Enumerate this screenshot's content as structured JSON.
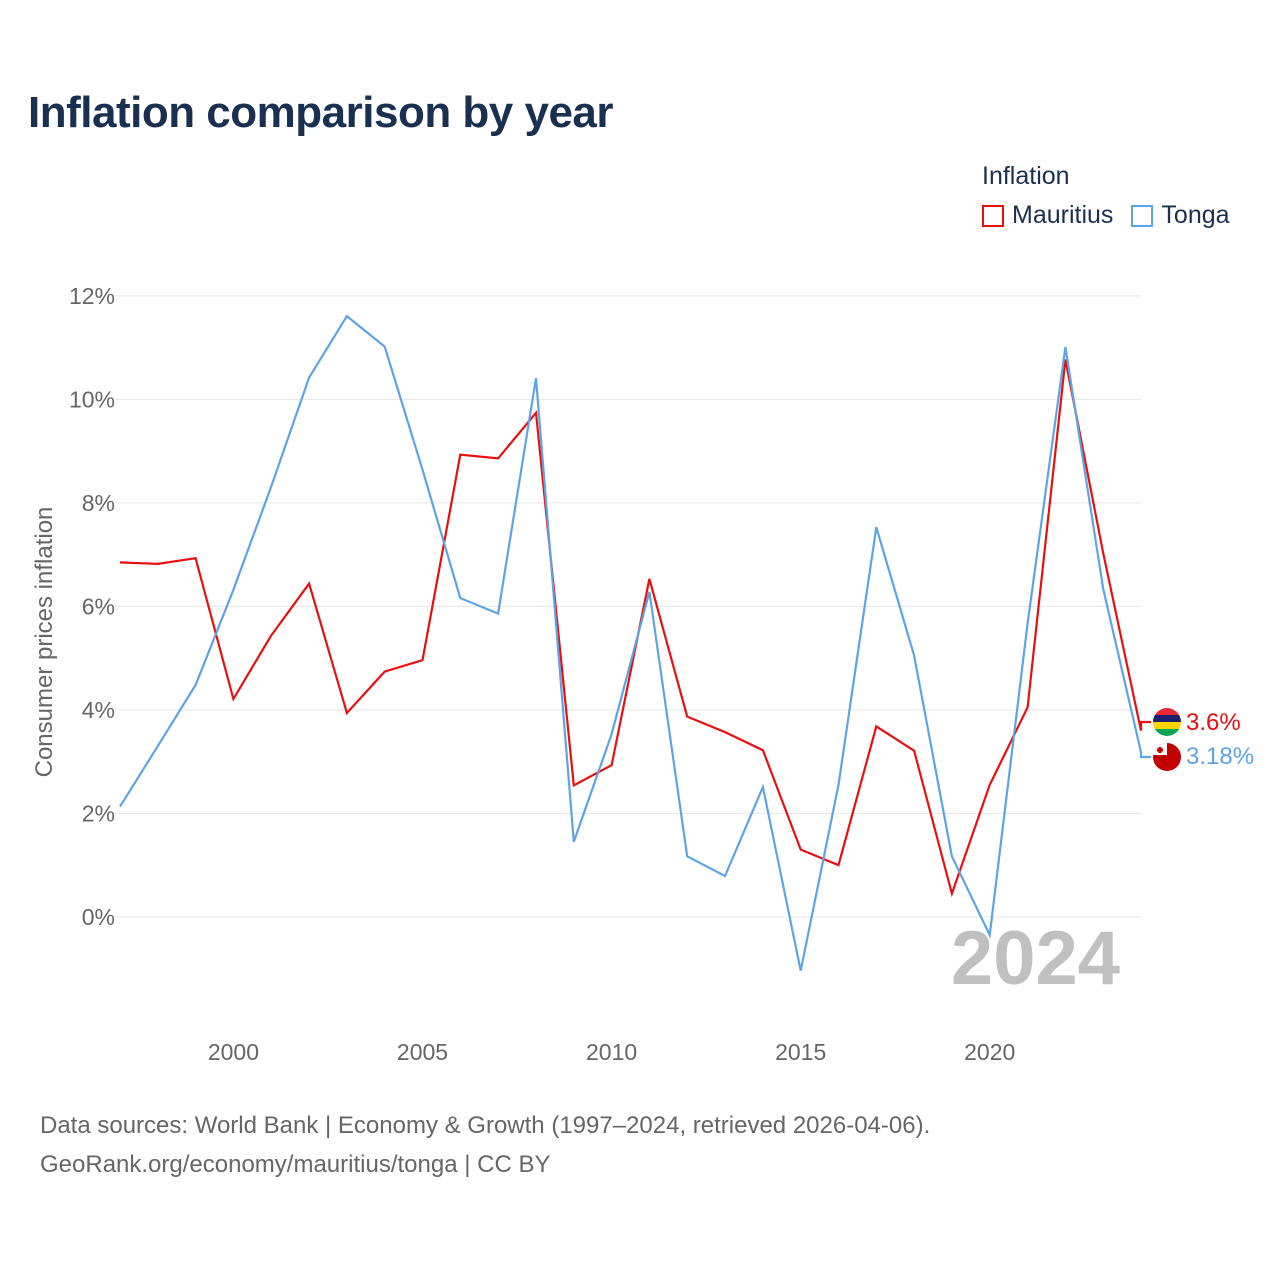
{
  "title": "Inflation comparison by year",
  "legend": {
    "title": "Inflation",
    "items": [
      {
        "label": "Mauritius",
        "color": "#e8100f"
      },
      {
        "label": "Tonga",
        "color": "#5ea4e4"
      }
    ]
  },
  "year_label": "2024",
  "source": {
    "line1": "Data sources: World Bank | Economy & Growth (1997–2024, retrieved 2026-04-06).",
    "line2": "GeoRank.org/economy/mauritius/tonga | CC BY"
  },
  "chart_data": {
    "type": "line",
    "title": "Inflation comparison by year",
    "xlabel": "",
    "ylabel": "Consumer prices inflation",
    "xlim": [
      1997,
      2024
    ],
    "ylim": [
      -1.8,
      12.5
    ],
    "x_ticks": [
      2000,
      2005,
      2010,
      2015,
      2020
    ],
    "x_tick_labels": [
      "2000",
      "2005",
      "2010",
      "2015",
      "2020"
    ],
    "y_ticks": [
      0,
      2,
      4,
      6,
      8,
      10,
      12
    ],
    "y_tick_labels": [
      "0%",
      "2%",
      "4%",
      "6%",
      "8%",
      "10%",
      "12%"
    ],
    "grid": true,
    "x": [
      1997,
      1998,
      1999,
      2000,
      2001,
      2002,
      2003,
      2004,
      2005,
      2006,
      2007,
      2008,
      2009,
      2010,
      2011,
      2012,
      2013,
      2014,
      2015,
      2016,
      2017,
      2018,
      2019,
      2020,
      2021,
      2022,
      2023,
      2024
    ],
    "series": [
      {
        "name": "Mauritius",
        "color": "#e8100f",
        "values": [
          6.85,
          6.82,
          6.93,
          4.21,
          5.44,
          6.44,
          3.94,
          4.74,
          4.96,
          8.93,
          8.86,
          9.74,
          2.54,
          2.93,
          6.53,
          3.87,
          3.57,
          3.22,
          1.3,
          1.0,
          3.68,
          3.21,
          0.45,
          2.55,
          4.05,
          10.77,
          7.03,
          3.6
        ],
        "end_label": "3.6%"
      },
      {
        "name": "Tonga",
        "color": "#5ea4e4",
        "values": [
          2.13,
          3.3,
          4.48,
          6.32,
          8.32,
          10.42,
          11.61,
          11.02,
          8.64,
          6.16,
          5.86,
          10.41,
          1.45,
          3.53,
          6.28,
          1.17,
          0.79,
          2.51,
          -1.04,
          2.55,
          7.53,
          5.05,
          1.17,
          -0.35,
          5.67,
          11.01,
          6.34,
          3.18
        ],
        "end_label": "3.18%"
      }
    ]
  }
}
